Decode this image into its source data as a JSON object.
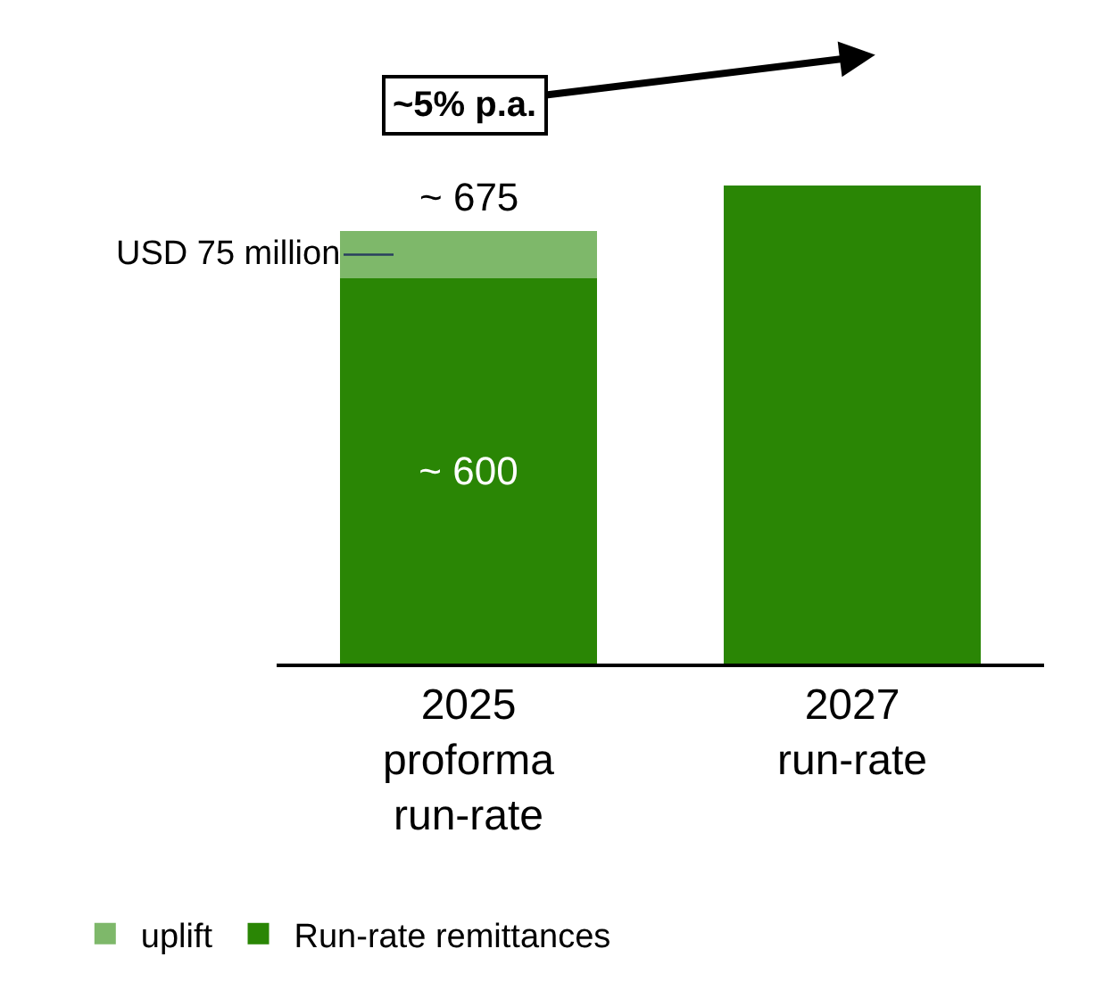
{
  "chart_data": {
    "type": "bar",
    "stacked": true,
    "categories": [
      "2025\nproforma\nrun-rate",
      "2027\nrun-rate"
    ],
    "series": [
      {
        "name": "Run-rate remittances",
        "color": "#2a8605",
        "values": [
          600,
          745
        ],
        "value_labels": [
          "~ 600",
          null
        ]
      },
      {
        "name": "uplift",
        "color": "#7eb86a",
        "values": [
          75,
          null
        ]
      }
    ],
    "totals": [
      "~ 675",
      null
    ],
    "annotations": [
      "USD 75 million",
      "~5% p.a."
    ],
    "legend": "bottom"
  }
}
